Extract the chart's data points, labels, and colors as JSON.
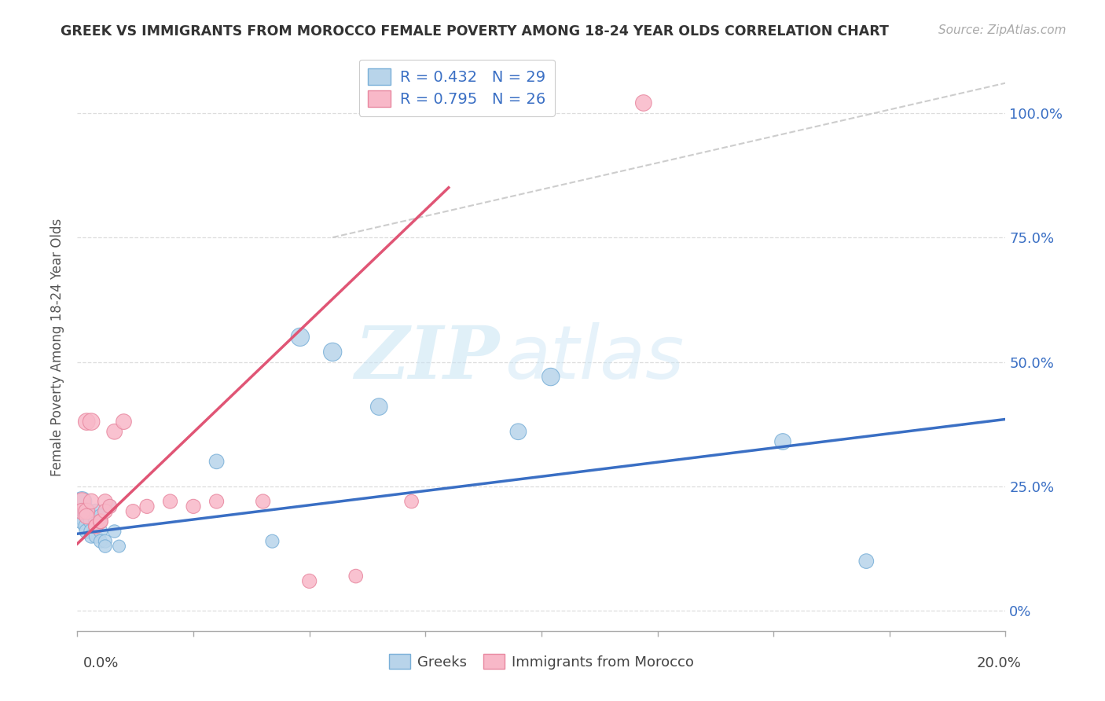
{
  "title": "GREEK VS IMMIGRANTS FROM MOROCCO FEMALE POVERTY AMONG 18-24 YEAR OLDS CORRELATION CHART",
  "source": "Source: ZipAtlas.com",
  "ylabel": "Female Poverty Among 18-24 Year Olds",
  "xlim": [
    0.0,
    0.2
  ],
  "ylim": [
    -0.04,
    1.1
  ],
  "ytick_vals": [
    0.0,
    0.25,
    0.5,
    0.75,
    1.0
  ],
  "ytick_labels": [
    "0%",
    "25.0%",
    "50.0%",
    "75.0%",
    "100.0%"
  ],
  "xtick_vals": [
    0.0,
    0.025,
    0.05,
    0.075,
    0.1,
    0.125,
    0.15,
    0.175,
    0.2
  ],
  "color_greek_fill": "#b8d4ea",
  "color_greek_edge": "#7ab0d8",
  "color_greek_line": "#3a6fc4",
  "color_morocco_fill": "#f8b8c8",
  "color_morocco_edge": "#e888a0",
  "color_morocco_line": "#e05575",
  "color_ref": "#c8c8c8",
  "R_greek": 0.432,
  "N_greek": 29,
  "R_morocco": 0.795,
  "N_morocco": 26,
  "greek_trend_x0": 0.0,
  "greek_trend_y0": 0.155,
  "greek_trend_x1": 0.2,
  "greek_trend_y1": 0.385,
  "morocco_trend_x0": 0.0,
  "morocco_trend_y0": 0.135,
  "morocco_trend_x1": 0.08,
  "morocco_trend_y1": 0.85,
  "ref_line_x0": 0.055,
  "ref_line_y0": 0.75,
  "ref_line_x1": 0.2,
  "ref_line_y1": 1.06,
  "greek_x": [
    0.001,
    0.001,
    0.001,
    0.002,
    0.002,
    0.002,
    0.003,
    0.003,
    0.003,
    0.004,
    0.004,
    0.004,
    0.005,
    0.005,
    0.005,
    0.006,
    0.006,
    0.007,
    0.008,
    0.009,
    0.03,
    0.042,
    0.048,
    0.055,
    0.065,
    0.095,
    0.102,
    0.152,
    0.17
  ],
  "greek_y": [
    0.22,
    0.19,
    0.18,
    0.2,
    0.17,
    0.16,
    0.18,
    0.16,
    0.15,
    0.18,
    0.2,
    0.15,
    0.19,
    0.16,
    0.14,
    0.14,
    0.13,
    0.21,
    0.16,
    0.13,
    0.3,
    0.14,
    0.55,
    0.52,
    0.41,
    0.36,
    0.47,
    0.34,
    0.1
  ],
  "greek_sizes": [
    320,
    260,
    200,
    260,
    220,
    180,
    200,
    180,
    160,
    180,
    180,
    160,
    180,
    160,
    150,
    150,
    140,
    150,
    140,
    130,
    180,
    150,
    280,
    280,
    240,
    220,
    260,
    220,
    180
  ],
  "morocco_x": [
    0.001,
    0.001,
    0.002,
    0.002,
    0.002,
    0.003,
    0.003,
    0.004,
    0.004,
    0.005,
    0.005,
    0.006,
    0.006,
    0.007,
    0.008,
    0.01,
    0.012,
    0.015,
    0.02,
    0.025,
    0.03,
    0.04,
    0.05,
    0.06,
    0.072,
    0.122
  ],
  "morocco_y": [
    0.22,
    0.2,
    0.38,
    0.2,
    0.19,
    0.38,
    0.22,
    0.17,
    0.17,
    0.18,
    0.18,
    0.22,
    0.2,
    0.21,
    0.36,
    0.38,
    0.2,
    0.21,
    0.22,
    0.21,
    0.22,
    0.22,
    0.06,
    0.07,
    0.22,
    1.02
  ],
  "morocco_sizes": [
    260,
    220,
    240,
    220,
    200,
    240,
    200,
    180,
    180,
    180,
    180,
    180,
    180,
    170,
    200,
    200,
    170,
    170,
    170,
    170,
    170,
    170,
    170,
    160,
    160,
    220
  ]
}
